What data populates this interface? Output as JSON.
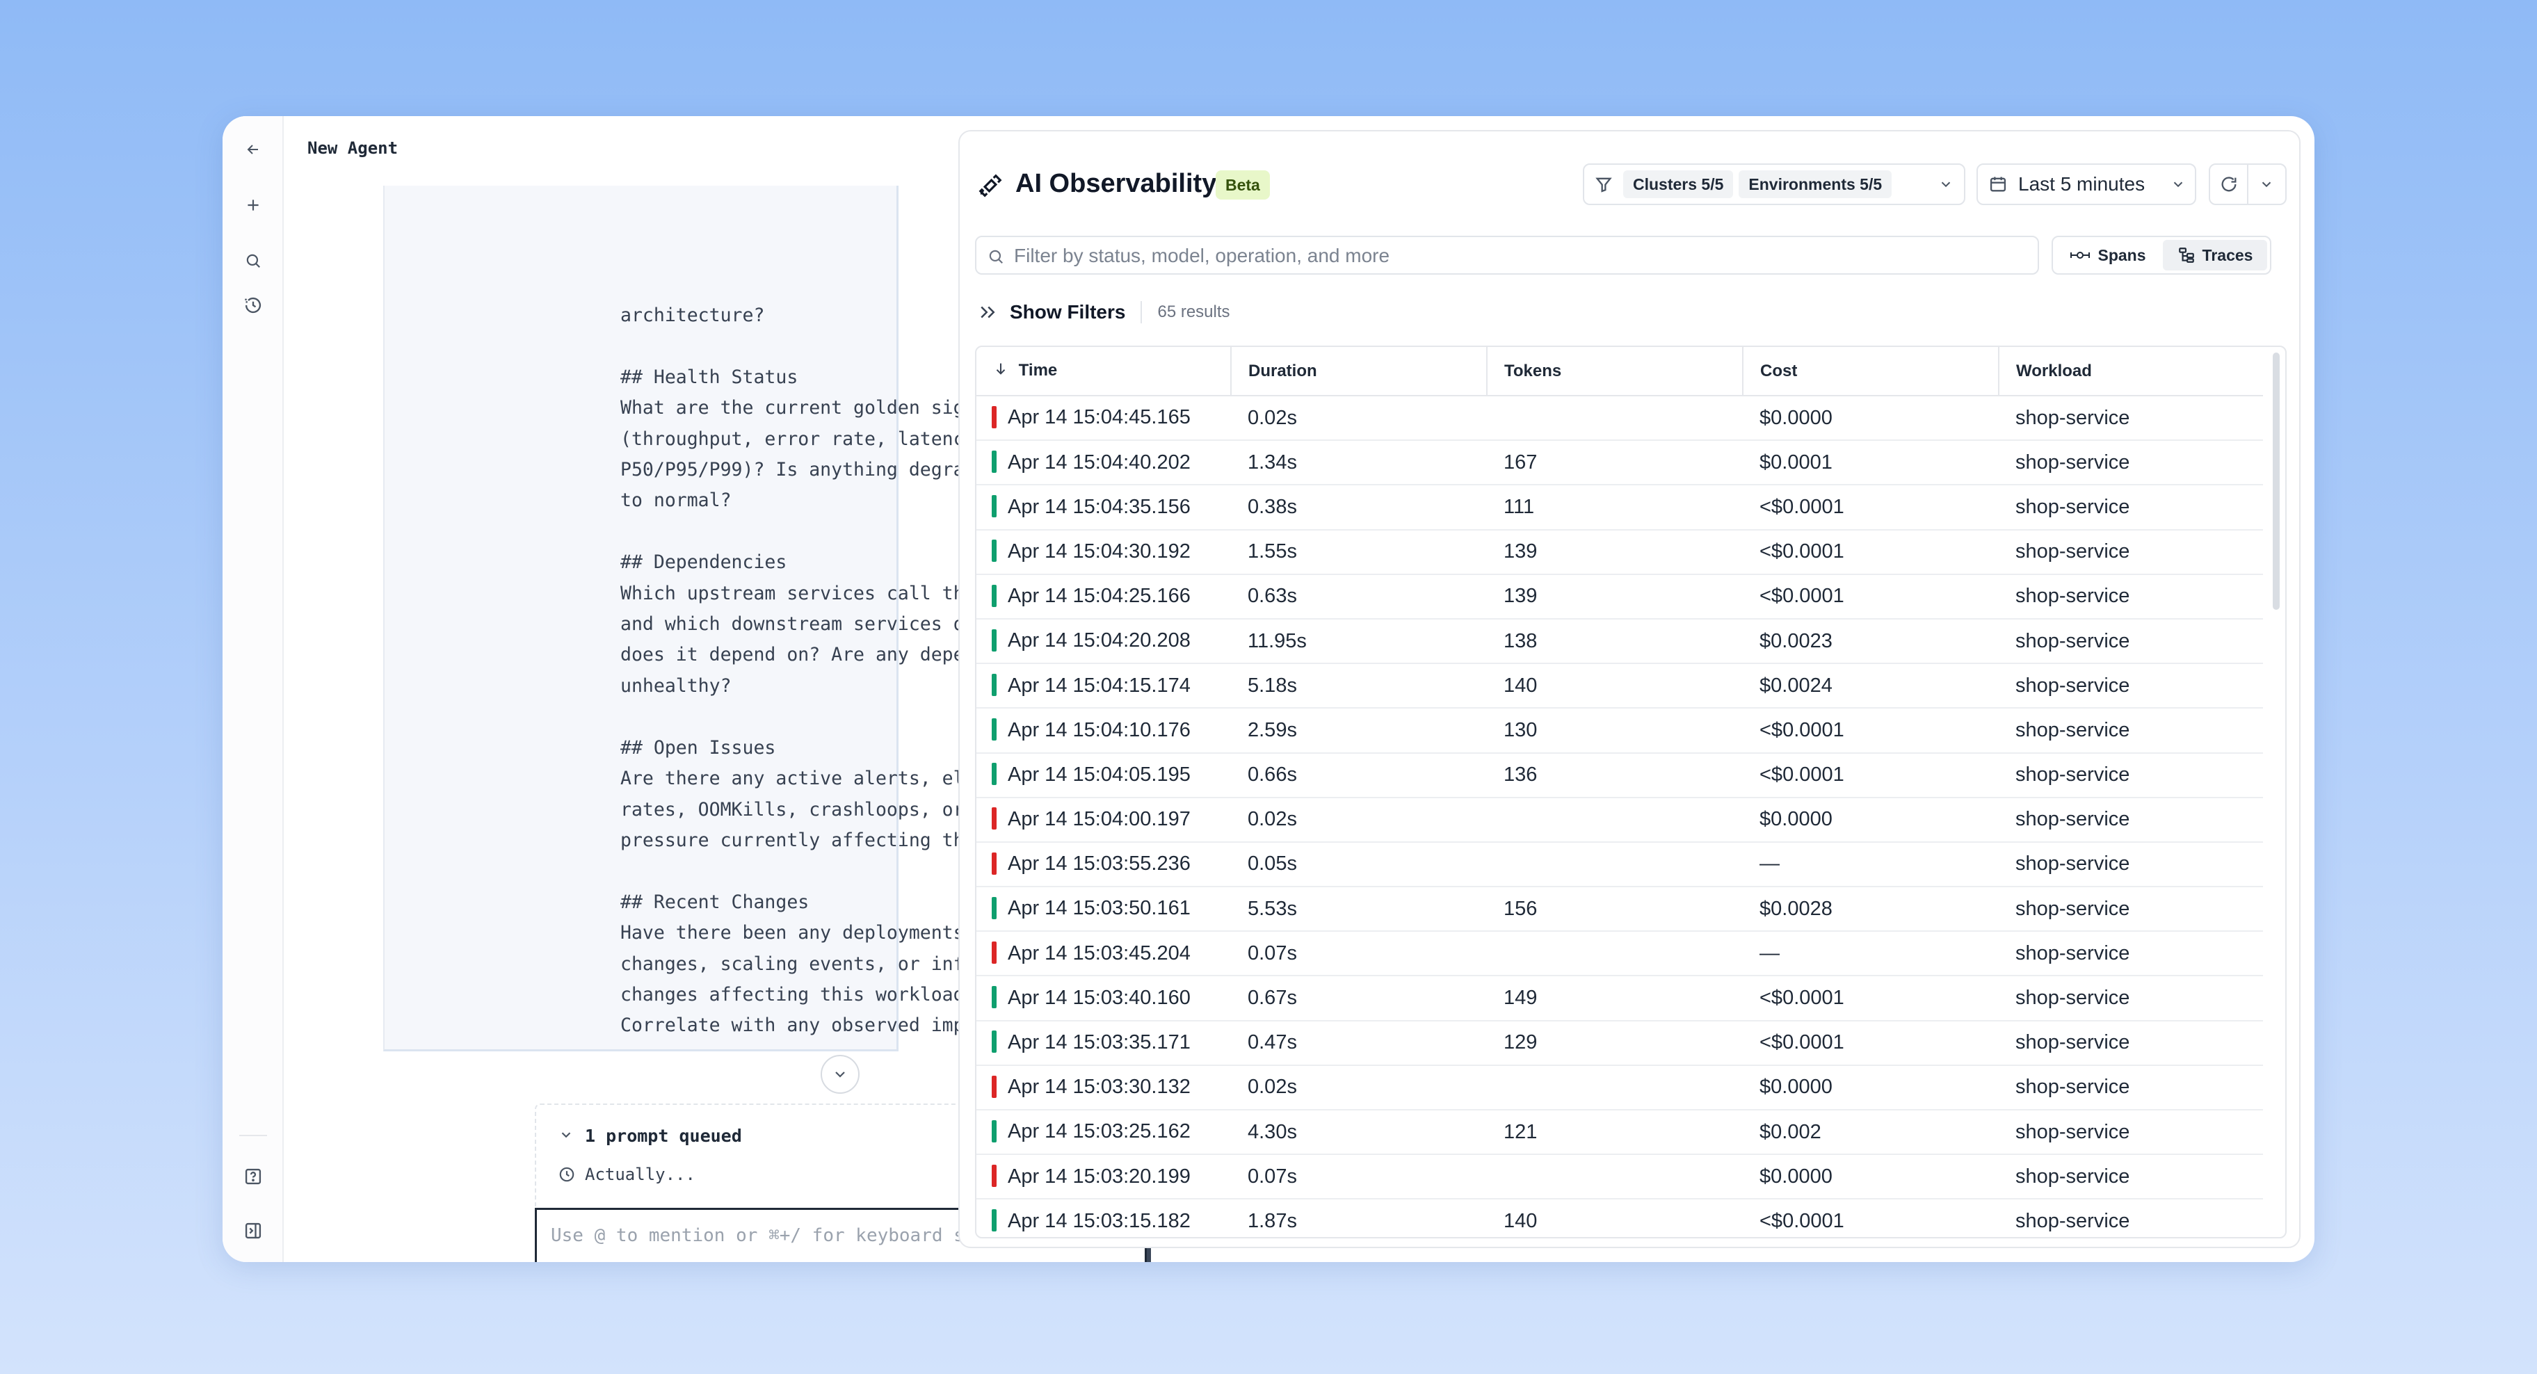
{
  "sidebar": {
    "icons": [
      "arrow-left-icon",
      "plus-icon",
      "search-icon",
      "history-icon",
      "help-icon",
      "panel-toggle-icon"
    ]
  },
  "agent": {
    "title": "New Agent",
    "message_lines": "architecture?\n\n## Health Status\nWhat are the current golden signals\n(throughput, error rate, latency\nP50/P95/P99)? Is anything degraded compared\nto normal?\n\n## Dependencies\nWhich upstream services call this workload,\nand which downstream services or databases\ndoes it depend on? Are any dependencies\nunhealthy?\n\n## Open Issues\nAre there any active alerts, elevated error\nrates, OOMKills, crashloops, or resource\npressure currently affecting this workload?\n\n## Recent Changes\nHave there been any deployments, config\nchanges, scaling events, or infrastructure\nchanges affecting this workload recently?\nCorrelate with any observed impact.",
    "queue_title": "1 prompt queued",
    "queue_item": "Actually...",
    "composer_placeholder": "Use @ to mention or ⌘+/ for keyboard shortcuts"
  },
  "observability": {
    "title": "AI Observability",
    "badge": "Beta",
    "clusters_chip": "Clusters 5/5",
    "environments_chip": "Environments 5/5",
    "time_range": "Last 5 minutes",
    "search_placeholder": "Filter by status, model, operation, and more",
    "view_spans": "Spans",
    "view_traces": "Traces",
    "show_filters": "Show Filters",
    "results": "65 results",
    "columns": [
      "Time",
      "Duration",
      "Tokens",
      "Cost",
      "Workload"
    ],
    "status_colors": {
      "error": "#dc2626",
      "ok": "#0f9f6e"
    },
    "rows": [
      {
        "status": "error",
        "time": "Apr 14 15:04:45.165",
        "duration": "0.02s",
        "tokens": "",
        "cost": "$0.0000",
        "workload": "shop-service"
      },
      {
        "status": "ok",
        "time": "Apr 14 15:04:40.202",
        "duration": "1.34s",
        "tokens": "167",
        "cost": "$0.0001",
        "workload": "shop-service"
      },
      {
        "status": "ok",
        "time": "Apr 14 15:04:35.156",
        "duration": "0.38s",
        "tokens": "111",
        "cost": "<$0.0001",
        "workload": "shop-service"
      },
      {
        "status": "ok",
        "time": "Apr 14 15:04:30.192",
        "duration": "1.55s",
        "tokens": "139",
        "cost": "<$0.0001",
        "workload": "shop-service"
      },
      {
        "status": "ok",
        "time": "Apr 14 15:04:25.166",
        "duration": "0.63s",
        "tokens": "139",
        "cost": "<$0.0001",
        "workload": "shop-service"
      },
      {
        "status": "ok",
        "time": "Apr 14 15:04:20.208",
        "duration": "11.95s",
        "tokens": "138",
        "cost": "$0.0023",
        "workload": "shop-service"
      },
      {
        "status": "ok",
        "time": "Apr 14 15:04:15.174",
        "duration": "5.18s",
        "tokens": "140",
        "cost": "$0.0024",
        "workload": "shop-service"
      },
      {
        "status": "ok",
        "time": "Apr 14 15:04:10.176",
        "duration": "2.59s",
        "tokens": "130",
        "cost": "<$0.0001",
        "workload": "shop-service"
      },
      {
        "status": "ok",
        "time": "Apr 14 15:04:05.195",
        "duration": "0.66s",
        "tokens": "136",
        "cost": "<$0.0001",
        "workload": "shop-service"
      },
      {
        "status": "error",
        "time": "Apr 14 15:04:00.197",
        "duration": "0.02s",
        "tokens": "",
        "cost": "$0.0000",
        "workload": "shop-service"
      },
      {
        "status": "error",
        "time": "Apr 14 15:03:55.236",
        "duration": "0.05s",
        "tokens": "",
        "cost": "—",
        "workload": "shop-service"
      },
      {
        "status": "ok",
        "time": "Apr 14 15:03:50.161",
        "duration": "5.53s",
        "tokens": "156",
        "cost": "$0.0028",
        "workload": "shop-service"
      },
      {
        "status": "error",
        "time": "Apr 14 15:03:45.204",
        "duration": "0.07s",
        "tokens": "",
        "cost": "—",
        "workload": "shop-service"
      },
      {
        "status": "ok",
        "time": "Apr 14 15:03:40.160",
        "duration": "0.67s",
        "tokens": "149",
        "cost": "<$0.0001",
        "workload": "shop-service"
      },
      {
        "status": "ok",
        "time": "Apr 14 15:03:35.171",
        "duration": "0.47s",
        "tokens": "129",
        "cost": "<$0.0001",
        "workload": "shop-service"
      },
      {
        "status": "error",
        "time": "Apr 14 15:03:30.132",
        "duration": "0.02s",
        "tokens": "",
        "cost": "$0.0000",
        "workload": "shop-service"
      },
      {
        "status": "ok",
        "time": "Apr 14 15:03:25.162",
        "duration": "4.30s",
        "tokens": "121",
        "cost": "$0.002",
        "workload": "shop-service"
      },
      {
        "status": "error",
        "time": "Apr 14 15:03:20.199",
        "duration": "0.07s",
        "tokens": "",
        "cost": "$0.0000",
        "workload": "shop-service"
      },
      {
        "status": "ok",
        "time": "Apr 14 15:03:15.182",
        "duration": "1.87s",
        "tokens": "140",
        "cost": "<$0.0001",
        "workload": "shop-service"
      }
    ]
  }
}
